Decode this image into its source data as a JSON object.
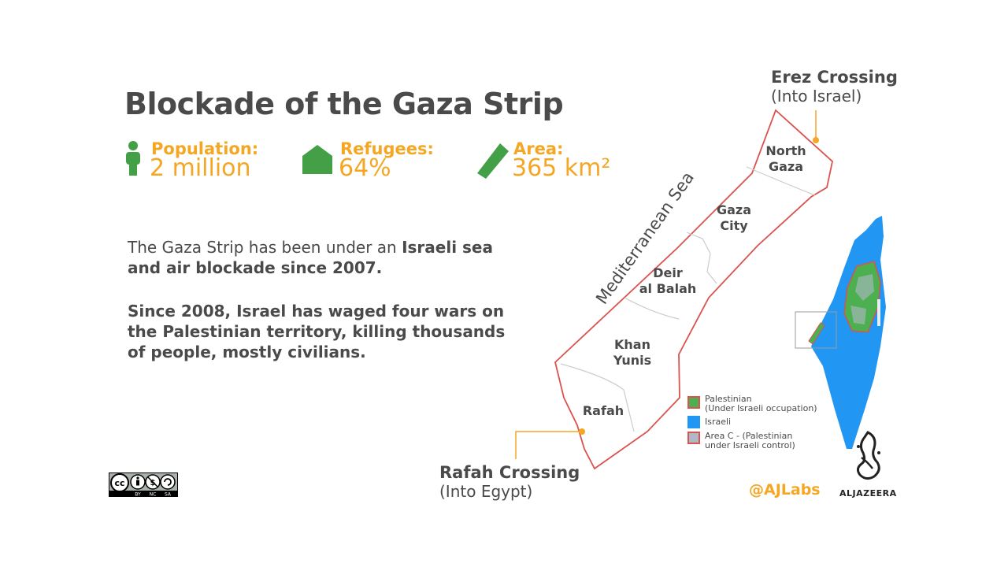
{
  "title": "Blockade of the Gaza Strip",
  "stats": [
    {
      "label": "Population:",
      "value": "2 million",
      "icon": "person-icon"
    },
    {
      "label": "Refugees:",
      "value": "64%",
      "icon": "house-icon"
    },
    {
      "label": "Area:",
      "value": "365 km²",
      "icon": "gaza-strip-icon"
    }
  ],
  "paragraph1": {
    "plain": "The Gaza Strip has been under an ",
    "bold": "Israeli sea and air blockade since 2007."
  },
  "paragraph2": "Since 2008, Israel has waged four wars on the Palestinian territory, killing thousands of people, mostly civilians.",
  "map": {
    "sea_label": "Mediterranean Sea",
    "regions": {
      "north_gaza": [
        "North",
        "Gaza"
      ],
      "gaza_city": [
        "Gaza",
        "City"
      ],
      "deir_al_balah": [
        "Deir",
        "al Balah"
      ],
      "khan_yunis": [
        "Khan",
        "Yunis"
      ],
      "rafah": [
        "Rafah"
      ]
    },
    "erez": {
      "title": "Erez Crossing",
      "sub": "(Into Israel)"
    },
    "rafah_crossing": {
      "title": "Rafah Crossing",
      "sub": "(Into Egypt)"
    }
  },
  "legend": [
    {
      "line1": "Palestinian",
      "line2": "(Under Israeli occupation)",
      "fill": "#4caf50",
      "border": "#d9534f"
    },
    {
      "line1": "Israeli",
      "line2": "",
      "fill": "#2196f3",
      "border": "#2196f3"
    },
    {
      "line1": "Area C - (Palestinian",
      "line2": "under Israeli control)",
      "fill": "#b0b8c8",
      "border": "#d9534f"
    }
  ],
  "footer": {
    "handle": "@AJLabs",
    "brand": "ALJAZEERA",
    "license_terms": [
      "BY",
      "NC",
      "SA"
    ]
  },
  "colors": {
    "accent": "#f5a623",
    "icon_green": "#43a047",
    "border_red": "#d9534f",
    "israel_blue": "#2196f3",
    "text": "#4a4a4a"
  }
}
